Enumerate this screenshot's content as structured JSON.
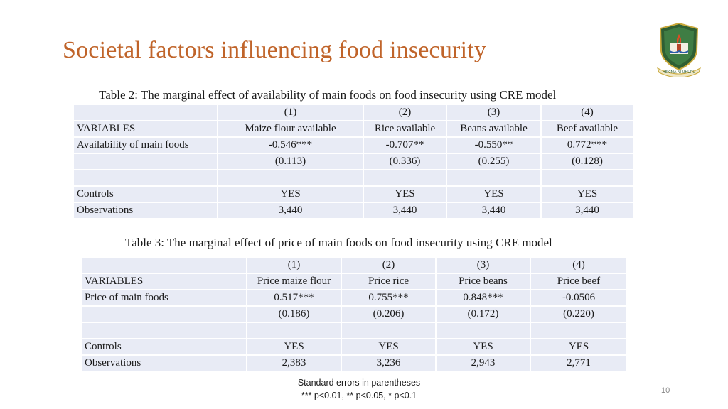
{
  "slide": {
    "title": "Societal factors influencing food insecurity",
    "logo_motto": "HEKIMA NI UHURU",
    "page_number": "10"
  },
  "table2": {
    "caption": "Table 2: The marginal effect of availability of main foods on food insecurity using CRE model",
    "col_numbers": [
      "(1)",
      "(2)",
      "(3)",
      "(4)"
    ],
    "variables_label": "VARIABLES",
    "col_names": [
      "Maize flour available",
      "Rice available",
      "Beans available",
      "Beef available"
    ],
    "row_label": "Availability of main foods",
    "coefficients": [
      "-0.546***",
      "-0.707**",
      "-0.550**",
      "0.772***"
    ],
    "std_errors": [
      "(0.113)",
      "(0.336)",
      "(0.255)",
      "(0.128)"
    ],
    "controls_label": "Controls",
    "controls": [
      "YES",
      "YES",
      "YES",
      "YES"
    ],
    "observations_label": "Observations",
    "observations": [
      "3,440",
      "3,440",
      "3,440",
      "3,440"
    ]
  },
  "table3": {
    "caption": "Table 3: The marginal effect of price of main foods on food insecurity using CRE model",
    "col_numbers": [
      "(1)",
      "(2)",
      "(3)",
      "(4)"
    ],
    "variables_label": "VARIABLES",
    "col_names": [
      "Price maize flour",
      "Price rice",
      "Price beans",
      "Price beef"
    ],
    "row_label": "Price of main foods",
    "coefficients": [
      "0.517***",
      "0.755***",
      "0.848***",
      "-0.0506"
    ],
    "std_errors": [
      "(0.186)",
      "(0.206)",
      "(0.172)",
      "(0.220)"
    ],
    "controls_label": "Controls",
    "controls": [
      "YES",
      "YES",
      "YES",
      "YES"
    ],
    "observations_label": "Observations",
    "observations": [
      "2,383",
      "3,236",
      "2,943",
      "2,771"
    ]
  },
  "notes": {
    "line1": "Standard errors in parentheses",
    "line2": "*** p<0.01, ** p<0.05, * p<0.1"
  },
  "colors": {
    "title": "#c0642a",
    "table_cell": "#e8ebf5"
  }
}
